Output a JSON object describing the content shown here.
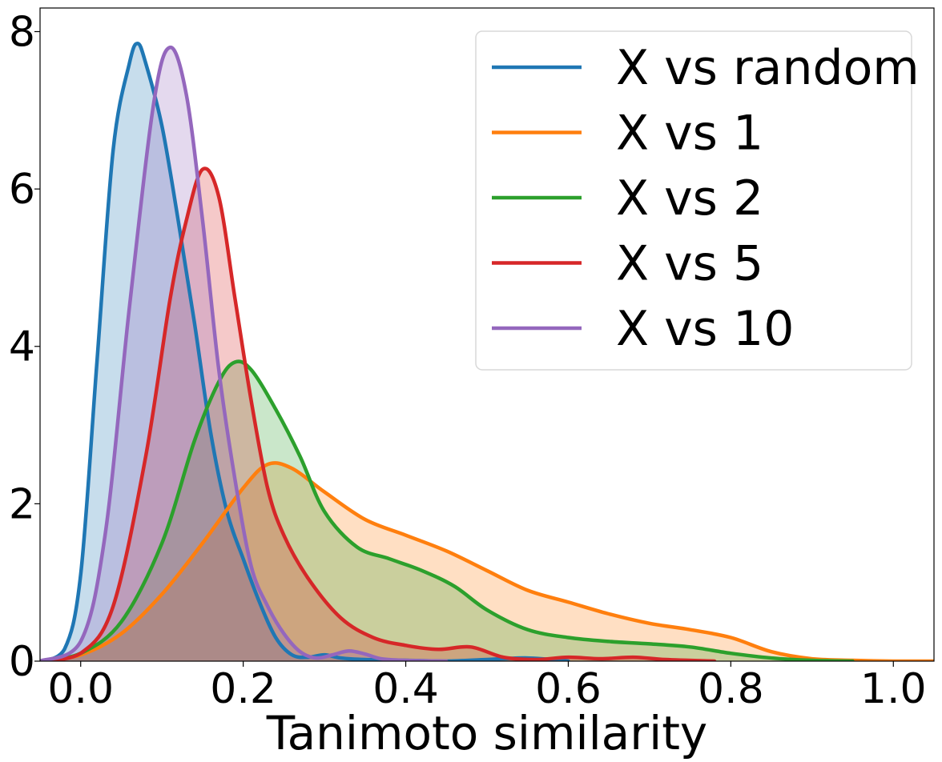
{
  "chart_data": {
    "type": "area",
    "title": "",
    "xlabel": "Tanimoto similarity",
    "ylabel": "",
    "xlim": [
      -0.05,
      1.05
    ],
    "ylim": [
      0,
      8.3
    ],
    "xticks": [
      0.0,
      0.2,
      0.4,
      0.6,
      0.8,
      1.0
    ],
    "xtick_labels": [
      "0.0",
      "0.2",
      "0.4",
      "0.6",
      "0.8",
      "1.0"
    ],
    "yticks": [
      0,
      2,
      4,
      6,
      8
    ],
    "ytick_labels": [
      "0",
      "2",
      "4",
      "6",
      "8"
    ],
    "grid": false,
    "legend_position": "top-right",
    "series": [
      {
        "name": "X vs random",
        "color": "#1f77b4",
        "x": [
          -0.05,
          -0.02,
          0.0,
          0.02,
          0.04,
          0.06,
          0.07,
          0.08,
          0.1,
          0.12,
          0.14,
          0.16,
          0.18,
          0.2,
          0.22,
          0.24,
          0.26,
          0.28,
          0.3,
          0.32,
          0.35,
          0.4,
          0.45,
          0.5,
          0.55,
          0.6
        ],
        "y": [
          0.0,
          0.15,
          1.1,
          3.8,
          6.5,
          7.6,
          7.85,
          7.6,
          6.8,
          5.6,
          4.3,
          2.9,
          1.9,
          1.3,
          0.75,
          0.3,
          0.08,
          0.05,
          0.08,
          0.04,
          0.02,
          0.01,
          0.0,
          0.02,
          0.04,
          0.0
        ]
      },
      {
        "name": "X vs 1",
        "color": "#ff7f0e",
        "x": [
          -0.05,
          0.0,
          0.05,
          0.1,
          0.15,
          0.2,
          0.23,
          0.26,
          0.3,
          0.35,
          0.4,
          0.45,
          0.5,
          0.55,
          0.6,
          0.65,
          0.7,
          0.75,
          0.8,
          0.85,
          0.9,
          0.95,
          1.0,
          1.05
        ],
        "y": [
          0.0,
          0.08,
          0.35,
          0.85,
          1.5,
          2.2,
          2.5,
          2.45,
          2.15,
          1.8,
          1.6,
          1.4,
          1.15,
          0.9,
          0.75,
          0.6,
          0.48,
          0.4,
          0.3,
          0.12,
          0.03,
          0.01,
          0.0,
          0.0
        ]
      },
      {
        "name": "X vs 2",
        "color": "#2ca02c",
        "x": [
          -0.05,
          0.0,
          0.05,
          0.1,
          0.14,
          0.17,
          0.19,
          0.21,
          0.24,
          0.27,
          0.3,
          0.34,
          0.38,
          0.42,
          0.46,
          0.5,
          0.55,
          0.6,
          0.65,
          0.7,
          0.75,
          0.8,
          0.85,
          0.9,
          0.95
        ],
        "y": [
          0.0,
          0.1,
          0.5,
          1.5,
          2.8,
          3.55,
          3.8,
          3.7,
          3.2,
          2.6,
          1.9,
          1.45,
          1.3,
          1.15,
          0.95,
          0.65,
          0.4,
          0.3,
          0.25,
          0.22,
          0.18,
          0.1,
          0.04,
          0.01,
          0.0
        ]
      },
      {
        "name": "X vs 5",
        "color": "#d62728",
        "x": [
          -0.05,
          0.0,
          0.04,
          0.08,
          0.11,
          0.13,
          0.15,
          0.17,
          0.19,
          0.21,
          0.23,
          0.25,
          0.28,
          0.32,
          0.36,
          0.4,
          0.44,
          0.48,
          0.52,
          0.56,
          0.6,
          0.64,
          0.68,
          0.72,
          0.78
        ],
        "y": [
          0.0,
          0.1,
          0.7,
          2.6,
          4.6,
          5.6,
          6.25,
          5.9,
          4.6,
          3.3,
          2.2,
          1.6,
          1.05,
          0.55,
          0.3,
          0.2,
          0.15,
          0.18,
          0.05,
          0.02,
          0.05,
          0.03,
          0.05,
          0.02,
          0.0
        ]
      },
      {
        "name": "X vs 10",
        "color": "#9467bd",
        "x": [
          -0.05,
          0.0,
          0.03,
          0.06,
          0.09,
          0.11,
          0.13,
          0.15,
          0.17,
          0.19,
          0.21,
          0.23,
          0.25,
          0.27,
          0.29,
          0.31,
          0.33,
          0.35,
          0.37,
          0.4,
          0.45
        ],
        "y": [
          0.0,
          0.25,
          1.6,
          4.5,
          7.1,
          7.8,
          7.2,
          5.6,
          3.7,
          2.3,
          1.2,
          0.7,
          0.35,
          0.12,
          0.04,
          0.08,
          0.13,
          0.09,
          0.03,
          0.01,
          0.0
        ]
      }
    ]
  }
}
